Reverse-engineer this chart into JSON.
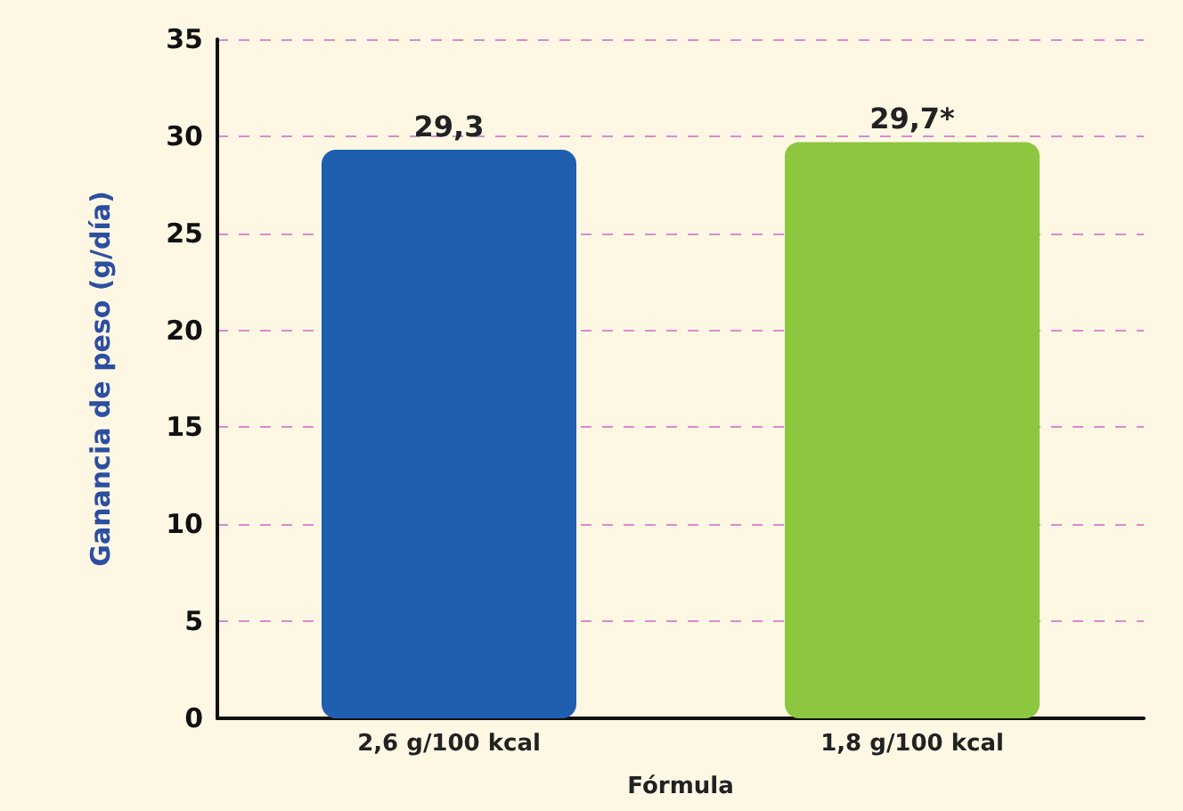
{
  "chart_data": {
    "type": "bar",
    "xlabel": "Fórmula",
    "ylabel": "Ganancia de peso (g/día)",
    "categories": [
      "2,6 g/100 kcal",
      "1,8 g/100 kcal"
    ],
    "values": [
      29.3,
      29.7
    ],
    "colors": [
      "#1f5fb0",
      "#8dc63f"
    ],
    "value_labels": [
      "29,3",
      "29,7*"
    ],
    "ylim": [
      0,
      35
    ],
    "yticks": [
      0,
      5,
      10,
      15,
      20,
      25,
      30,
      35
    ],
    "grid": "y"
  }
}
